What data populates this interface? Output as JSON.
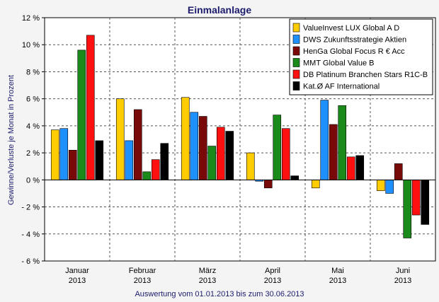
{
  "chart_data": {
    "type": "bar",
    "title": "Einmalanlage",
    "ylabel": "Gewinne/Verluste je Monat in Prozent",
    "xlabel": "Auswertung vom 01.01.2013 bis zum 30.06.2013",
    "ylim": [
      -6,
      12
    ],
    "ytick_values": [
      -6,
      -4,
      -2,
      0,
      2,
      4,
      6,
      8,
      10,
      12
    ],
    "ytick_labels": [
      "- 6 %",
      "- 4 %",
      "- 2 %",
      "0 %",
      "2 %",
      "4 %",
      "6 %",
      "8 %",
      "10 %",
      "12 %"
    ],
    "categories": [
      {
        "month": "Januar",
        "year": "2013"
      },
      {
        "month": "Februar",
        "year": "2013"
      },
      {
        "month": "März",
        "year": "2013"
      },
      {
        "month": "April",
        "year": "2013"
      },
      {
        "month": "Mai",
        "year": "2013"
      },
      {
        "month": "Juni",
        "year": "2013"
      }
    ],
    "grid": true,
    "legend_position": "top-right",
    "series": [
      {
        "name": "ValueInvest LUX Global A D",
        "color": "#ffcc00",
        "values": [
          3.7,
          6.0,
          6.1,
          2.0,
          -0.6,
          -0.8
        ]
      },
      {
        "name": "DWS Zukunftsstrategie Aktien",
        "color": "#1e90ff",
        "values": [
          3.8,
          2.9,
          5.0,
          -0.1,
          5.9,
          -1.0
        ]
      },
      {
        "name": "HenGa Global Focus R € Acc",
        "color": "#7a0a0a",
        "values": [
          2.2,
          5.2,
          4.7,
          -0.6,
          4.1,
          1.2
        ]
      },
      {
        "name": "MMT Global Value B",
        "color": "#1a8a1a",
        "values": [
          9.6,
          0.6,
          2.5,
          4.8,
          5.5,
          -4.3
        ]
      },
      {
        "name": "DB Platinum Branchen Stars R1C-B",
        "color": "#ff1010",
        "values": [
          10.7,
          1.5,
          3.9,
          3.8,
          1.7,
          -2.6
        ]
      },
      {
        "name": "Kat.Ø AF International",
        "color": "#000000",
        "values": [
          2.9,
          2.7,
          3.6,
          0.3,
          1.8,
          -3.3
        ]
      }
    ]
  }
}
